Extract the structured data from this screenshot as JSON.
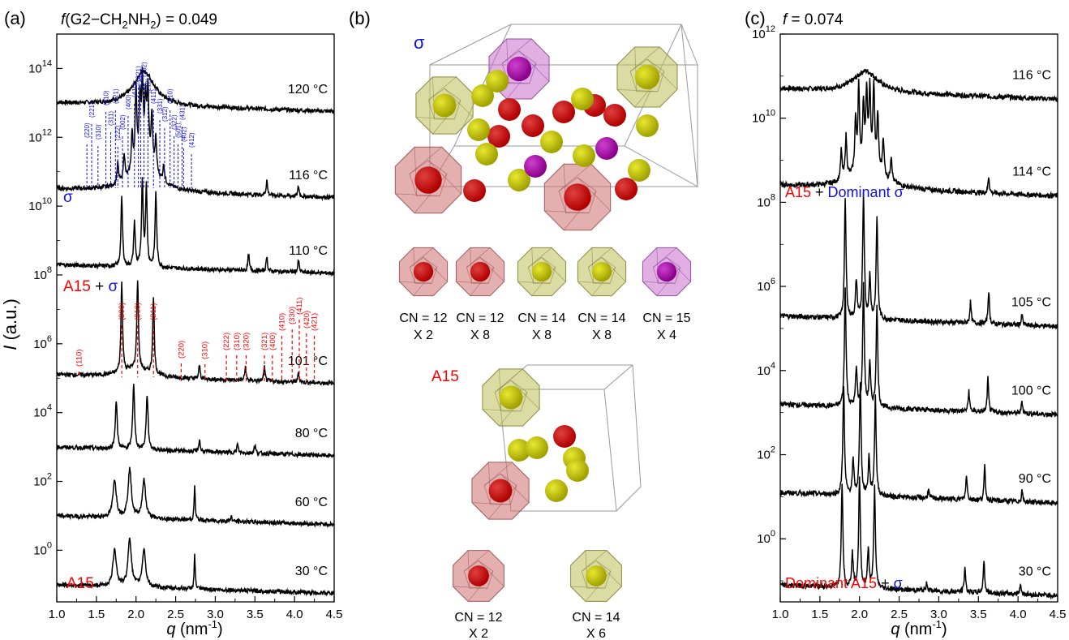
{
  "panel_a": {
    "label": "(a)",
    "title_f": "f",
    "title_rest": "(G2−CH",
    "title_sub1": "2",
    "title_mid": "NH",
    "title_sub2": "2",
    "title_end": ") = 0.049",
    "ylabel": "I (a.u.)",
    "xlabel": "q (nm",
    "xlabel_sup": "-1",
    "xlabel_end": ")",
    "xticks": [
      "1.0",
      "1.5",
      "2.0",
      "2.5",
      "3.0",
      "3.5",
      "4.0",
      "4.5"
    ],
    "yticks": [
      {
        "base": "10",
        "exp": "14"
      },
      {
        "base": "10",
        "exp": "12"
      },
      {
        "base": "10",
        "exp": "10"
      },
      {
        "base": "10",
        "exp": "8"
      },
      {
        "base": "10",
        "exp": "6"
      },
      {
        "base": "10",
        "exp": "4"
      },
      {
        "base": "10",
        "exp": "2"
      },
      {
        "base": "10",
        "exp": "0"
      }
    ],
    "temps": [
      "120 °C",
      "116 °C",
      "110 °C",
      "101 °C",
      "80 °C",
      "60 °C",
      "30 °C"
    ],
    "phase_sigma": "σ",
    "phase_a15_sigma_a": "A15",
    "phase_a15_sigma_plus": " + ",
    "phase_a15_sigma_b": "σ",
    "phase_a15": "A15",
    "sigma_indices": [
      "(220)",
      "(221)",
      "(310)",
      "(310)",
      "(311)",
      "(221)",
      "(222)",
      "(002)",
      "(400)",
      "(410)",
      "(321)",
      "(330)",
      "(202)",
      "(212)",
      "(411)",
      "(331)",
      "(312)",
      "(510)",
      "(322)",
      "(501),",
      "(431)",
      "(402)",
      "(412)"
    ],
    "a15_indices": [
      "(110)",
      "(200)",
      "(210)",
      "(211)",
      "(220)",
      "(310)",
      "(222)",
      "(310)",
      "(320)",
      "(321)",
      "(400)",
      "(410)",
      "(330)",
      "(411)",
      "(420)",
      "(421)"
    ]
  },
  "panel_b": {
    "label": "(b)",
    "sigma_label": "σ",
    "a15_label": "A15",
    "sigma_cells": [
      {
        "cn": "CN = 12",
        "mult": "X 2",
        "color": "red"
      },
      {
        "cn": "CN = 12",
        "mult": "X 8",
        "color": "red"
      },
      {
        "cn": "CN = 14",
        "mult": "X 8",
        "color": "yellow"
      },
      {
        "cn": "CN = 14",
        "mult": "X 8",
        "color": "yellow"
      },
      {
        "cn": "CN = 15",
        "mult": "X 4",
        "color": "purple"
      }
    ],
    "a15_cells": [
      {
        "cn": "CN = 12",
        "mult": "X 2",
        "color": "red"
      },
      {
        "cn": "CN = 14",
        "mult": "X 6",
        "color": "yellow"
      }
    ]
  },
  "panel_c": {
    "label": "(c)",
    "title_f": "f",
    "title_end": " = 0.074",
    "xlabel": "q (nm",
    "xlabel_sup": "-1",
    "xlabel_end": ")",
    "xticks": [
      "1.0",
      "1.5",
      "2.0",
      "2.5",
      "3.0",
      "3.5",
      "4.0",
      "4.5"
    ],
    "yticks": [
      {
        "base": "10",
        "exp": "12"
      },
      {
        "base": "10",
        "exp": "10"
      },
      {
        "base": "10",
        "exp": "8"
      },
      {
        "base": "10",
        "exp": "6"
      },
      {
        "base": "10",
        "exp": "4"
      },
      {
        "base": "10",
        "exp": "2"
      },
      {
        "base": "10",
        "exp": "0"
      }
    ],
    "temps": [
      "116 °C",
      "114 °C",
      "105 °C",
      "100 °C",
      "90 °C",
      "30 °C"
    ],
    "phase_top_a": "A15",
    "phase_top_plus": " + ",
    "phase_top_b": "Dominant σ",
    "phase_bottom_a": "Dominant A15",
    "phase_bottom_plus": " + ",
    "phase_bottom_b": "σ"
  },
  "colors": {
    "red": "#ff0000",
    "blue": "#1010e0",
    "black": "#000000"
  },
  "chart_data": [
    {
      "type": "line",
      "x_label": "q (nm-1)",
      "y_label": "I (a.u.)",
      "xlim": [
        1.0,
        4.5
      ],
      "y_scale": "log",
      "ylim_exp": [
        -1.5,
        15
      ],
      "series": [
        {
          "name": "120 °C",
          "baseline_exp": 13.0,
          "peaks": [
            {
              "q": 2.1,
              "h": 1.0,
              "w": 0.16
            }
          ]
        },
        {
          "name": "116 °C",
          "baseline_exp": 10.5,
          "peaks": [
            {
              "q": 1.77,
              "h": 0.6,
              "w": 0.012
            },
            {
              "q": 1.85,
              "h": 0.8,
              "w": 0.012
            },
            {
              "q": 1.95,
              "h": 1.1,
              "w": 0.012
            },
            {
              "q": 2.0,
              "h": 2.2,
              "w": 0.012
            },
            {
              "q": 2.05,
              "h": 1.7,
              "w": 0.012
            },
            {
              "q": 2.08,
              "h": 2.1,
              "w": 0.012
            },
            {
              "q": 2.12,
              "h": 1.6,
              "w": 0.012
            },
            {
              "q": 2.15,
              "h": 2.0,
              "w": 0.012
            },
            {
              "q": 2.2,
              "h": 1.5,
              "w": 0.012
            },
            {
              "q": 2.25,
              "h": 1.0,
              "w": 0.012
            },
            {
              "q": 2.35,
              "h": 0.5,
              "w": 0.012
            },
            {
              "q": 3.65,
              "h": 0.45,
              "w": 0.01
            },
            {
              "q": 4.05,
              "h": 0.3,
              "w": 0.01
            },
            {
              "q": 2.1,
              "h": 1.0,
              "w": 0.16
            }
          ]
        },
        {
          "name": "110 °C",
          "baseline_exp": 8.3,
          "peaks": [
            {
              "q": 1.82,
              "h": 2.0,
              "w": 0.012
            },
            {
              "q": 1.98,
              "h": 1.3,
              "w": 0.012
            },
            {
              "q": 2.08,
              "h": 2.5,
              "w": 0.012
            },
            {
              "q": 2.13,
              "h": 2.3,
              "w": 0.012
            },
            {
              "q": 2.25,
              "h": 2.2,
              "w": 0.012
            },
            {
              "q": 3.42,
              "h": 0.5,
              "w": 0.01
            },
            {
              "q": 3.65,
              "h": 0.45,
              "w": 0.01
            },
            {
              "q": 4.05,
              "h": 0.35,
              "w": 0.01
            }
          ]
        },
        {
          "name": "101 °C",
          "baseline_exp": 5.1,
          "peaks": [
            {
              "q": 1.82,
              "h": 2.6,
              "w": 0.012
            },
            {
              "q": 2.02,
              "h": 2.6,
              "w": 0.012
            },
            {
              "q": 2.22,
              "h": 2.2,
              "w": 0.012
            },
            {
              "q": 2.8,
              "h": 0.4,
              "w": 0.01
            },
            {
              "q": 3.38,
              "h": 0.4,
              "w": 0.01
            },
            {
              "q": 3.62,
              "h": 0.4,
              "w": 0.01
            },
            {
              "q": 4.05,
              "h": 0.3,
              "w": 0.01
            },
            {
              "q": 2.0,
              "h": 0.25,
              "w": 0.2
            }
          ]
        },
        {
          "name": "80 °C",
          "baseline_exp": 3.0,
          "peaks": [
            {
              "q": 1.75,
              "h": 1.4,
              "w": 0.014
            },
            {
              "q": 1.97,
              "h": 1.9,
              "w": 0.014
            },
            {
              "q": 2.14,
              "h": 1.6,
              "w": 0.014
            },
            {
              "q": 2.8,
              "h": 0.35,
              "w": 0.01
            },
            {
              "q": 3.28,
              "h": 0.25,
              "w": 0.01
            },
            {
              "q": 3.5,
              "h": 0.25,
              "w": 0.01
            }
          ]
        },
        {
          "name": "60 °C",
          "baseline_exp": 1.0,
          "peaks": [
            {
              "q": 1.73,
              "h": 1.1,
              "w": 0.025
            },
            {
              "q": 1.92,
              "h": 1.4,
              "w": 0.025
            },
            {
              "q": 2.1,
              "h": 1.1,
              "w": 0.025
            },
            {
              "q": 2.74,
              "h": 1.0,
              "w": 0.008
            },
            {
              "q": 3.2,
              "h": 0.15,
              "w": 0.01
            }
          ]
        },
        {
          "name": "30 °C",
          "baseline_exp": -1.0,
          "peaks": [
            {
              "q": 1.73,
              "h": 1.1,
              "w": 0.025
            },
            {
              "q": 1.92,
              "h": 1.4,
              "w": 0.025
            },
            {
              "q": 2.1,
              "h": 1.1,
              "w": 0.025
            },
            {
              "q": 2.74,
              "h": 1.0,
              "w": 0.008
            }
          ]
        }
      ]
    },
    {
      "type": "line",
      "x_label": "q (nm-1)",
      "y_label": "",
      "xlim": [
        1.0,
        4.5
      ],
      "y_scale": "log",
      "ylim_exp": [
        -1.5,
        12
      ],
      "series": [
        {
          "name": "116 °C",
          "baseline_exp": 10.7,
          "peaks": [
            {
              "q": 2.08,
              "h": 0.5,
              "w": 0.18
            }
          ]
        },
        {
          "name": "114 °C",
          "baseline_exp": 8.4,
          "peaks": [
            {
              "q": 1.77,
              "h": 0.7,
              "w": 0.012
            },
            {
              "q": 1.83,
              "h": 1.0,
              "w": 0.012
            },
            {
              "q": 1.95,
              "h": 1.2,
              "w": 0.012
            },
            {
              "q": 1.99,
              "h": 1.9,
              "w": 0.012
            },
            {
              "q": 2.05,
              "h": 1.4,
              "w": 0.012
            },
            {
              "q": 2.09,
              "h": 1.6,
              "w": 0.012
            },
            {
              "q": 2.13,
              "h": 1.7,
              "w": 0.012
            },
            {
              "q": 2.18,
              "h": 1.9,
              "w": 0.012
            },
            {
              "q": 2.23,
              "h": 1.3,
              "w": 0.012
            },
            {
              "q": 2.3,
              "h": 0.9,
              "w": 0.012
            },
            {
              "q": 2.4,
              "h": 0.6,
              "w": 0.012
            },
            {
              "q": 3.63,
              "h": 0.4,
              "w": 0.01
            },
            {
              "q": 2.1,
              "h": 0.6,
              "w": 0.2
            }
          ]
        },
        {
          "name": "105 °C",
          "baseline_exp": 5.3,
          "peaks": [
            {
              "q": 1.82,
              "h": 2.8,
              "w": 0.012
            },
            {
              "q": 1.96,
              "h": 0.9,
              "w": 0.012
            },
            {
              "q": 2.05,
              "h": 2.9,
              "w": 0.012
            },
            {
              "q": 2.13,
              "h": 1.0,
              "w": 0.012
            },
            {
              "q": 2.22,
              "h": 2.4,
              "w": 0.012
            },
            {
              "q": 3.4,
              "h": 0.5,
              "w": 0.01
            },
            {
              "q": 3.63,
              "h": 0.8,
              "w": 0.01
            },
            {
              "q": 4.05,
              "h": 0.25,
              "w": 0.01
            }
          ]
        },
        {
          "name": "100 °C",
          "baseline_exp": 3.2,
          "peaks": [
            {
              "q": 1.82,
              "h": 2.8,
              "w": 0.012
            },
            {
              "q": 1.96,
              "h": 0.9,
              "w": 0.012
            },
            {
              "q": 2.05,
              "h": 2.9,
              "w": 0.012
            },
            {
              "q": 2.13,
              "h": 1.0,
              "w": 0.012
            },
            {
              "q": 2.22,
              "h": 2.4,
              "w": 0.012
            },
            {
              "q": 3.38,
              "h": 0.5,
              "w": 0.01
            },
            {
              "q": 3.62,
              "h": 0.8,
              "w": 0.01
            },
            {
              "q": 4.05,
              "h": 0.3,
              "w": 0.01
            }
          ]
        },
        {
          "name": "90 °C",
          "baseline_exp": 1.1,
          "peaks": [
            {
              "q": 1.8,
              "h": 2.6,
              "w": 0.012
            },
            {
              "q": 1.92,
              "h": 0.8,
              "w": 0.012
            },
            {
              "q": 2.01,
              "h": 2.7,
              "w": 0.012
            },
            {
              "q": 2.12,
              "h": 0.9,
              "w": 0.012
            },
            {
              "q": 2.2,
              "h": 2.4,
              "w": 0.012
            },
            {
              "q": 2.87,
              "h": 0.2,
              "w": 0.01
            },
            {
              "q": 3.35,
              "h": 0.6,
              "w": 0.01
            },
            {
              "q": 3.58,
              "h": 0.8,
              "w": 0.01
            },
            {
              "q": 4.05,
              "h": 0.25,
              "w": 0.01
            }
          ]
        },
        {
          "name": "30 °C",
          "baseline_exp": -1.1,
          "peaks": [
            {
              "q": 1.78,
              "h": 2.5,
              "w": 0.012
            },
            {
              "q": 1.91,
              "h": 0.8,
              "w": 0.012
            },
            {
              "q": 2.0,
              "h": 2.6,
              "w": 0.012
            },
            {
              "q": 2.11,
              "h": 0.9,
              "w": 0.012
            },
            {
              "q": 2.19,
              "h": 2.4,
              "w": 0.012
            },
            {
              "q": 2.85,
              "h": 0.2,
              "w": 0.01
            },
            {
              "q": 3.33,
              "h": 0.6,
              "w": 0.01
            },
            {
              "q": 3.57,
              "h": 0.8,
              "w": 0.01
            },
            {
              "q": 4.03,
              "h": 0.25,
              "w": 0.01
            }
          ]
        }
      ]
    }
  ]
}
